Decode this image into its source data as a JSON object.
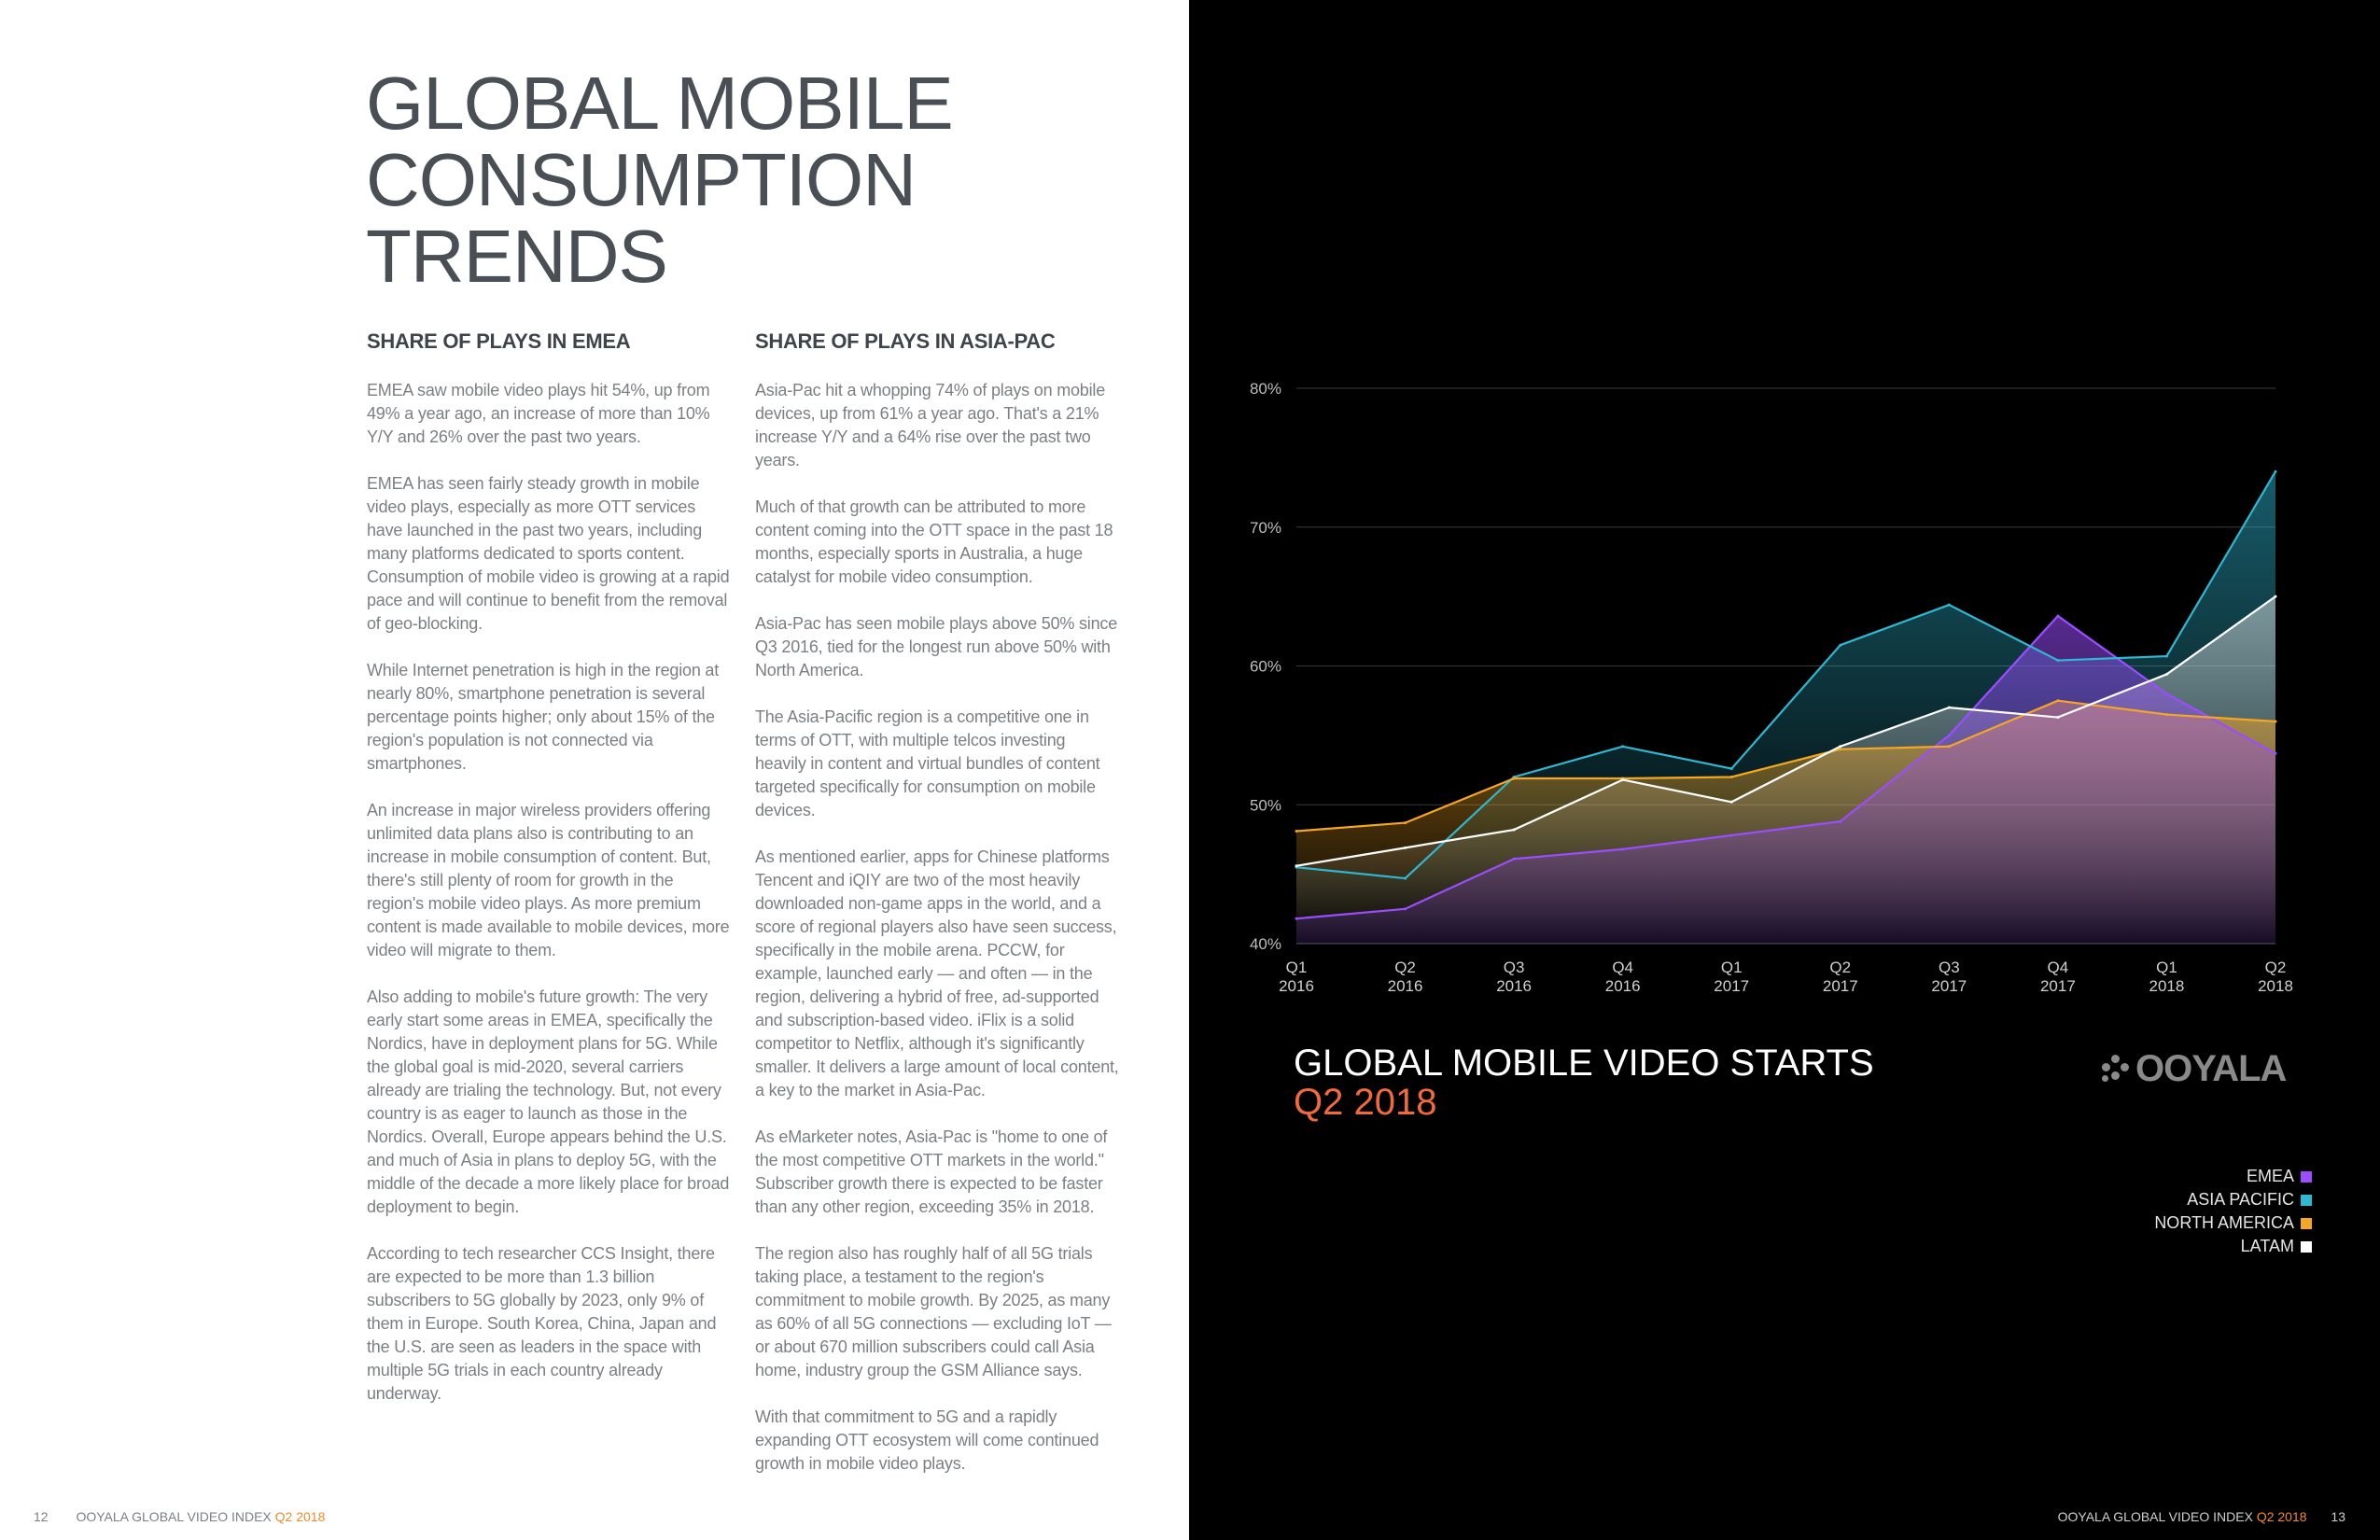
{
  "left_page": {
    "title_lines": [
      "GLOBAL MOBILE",
      "CONSUMPTION",
      "TRENDS"
    ],
    "col_left": {
      "heading": "SHARE OF PLAYS IN EMEA",
      "paragraphs": [
        "EMEA saw mobile video plays hit 54%, up from 49% a year ago, an increase of more than 10% Y/Y and 26% over the past two years.",
        "EMEA has seen fairly steady growth in mobile video plays, especially as more OTT services have launched in the past two years, including many platforms dedicated to sports content. Consumption of mobile video is growing at a rapid pace and will continue to benefit from the removal of geo-blocking.",
        "While Internet penetration is high in the region at nearly 80%, smartphone penetration is several percentage points higher; only about 15% of the region's population is not connected via smartphones.",
        "An increase in major wireless providers offering unlimited data plans also is contributing to an increase in mobile consumption of content. But, there's still plenty of room for growth in the region's mobile video plays. As more premium content is made available to mobile devices, more video will migrate to them.",
        "Also adding to mobile's future growth: The very early start some areas in EMEA, specifically the Nordics, have in deployment plans for 5G. While the global goal is mid-2020, several carriers already are trialing the technology. But, not every country is as eager to launch as those in the Nordics. Overall, Europe appears behind the U.S. and much of Asia in plans to deploy 5G, with the middle of the decade a more likely place for broad deployment to begin.",
        "According to tech researcher CCS Insight, there are expected to be more than 1.3 billion subscribers to 5G globally by 2023, only 9% of them in Europe. South Korea, China, Japan and the U.S. are seen as leaders in the space with multiple 5G trials in each country already underway."
      ]
    },
    "col_right": {
      "heading": "SHARE OF PLAYS IN ASIA-PAC",
      "paragraphs": [
        "Asia-Pac hit a whopping 74% of plays on mobile devices, up from 61% a year ago. That's a 21% increase Y/Y and a 64% rise over the past two years.",
        "Much of that growth can be attributed to more content coming into the OTT space in the past 18 months, especially sports in Australia, a huge catalyst for mobile video consumption.",
        "Asia-Pac has seen mobile plays above 50% since Q3 2016, tied for the longest run above 50% with North America.",
        "The Asia-Pacific region is a competitive one in terms of OTT, with multiple telcos investing heavily in content and virtual bundles of content targeted specifically for consumption on mobile devices.",
        "As mentioned earlier, apps for Chinese platforms Tencent and iQIY are two of the most heavily downloaded non-game apps in the world, and a score of regional players also have seen success, specifically in the mobile arena. PCCW, for example, launched early — and often — in the region, delivering a hybrid of free, ad-supported and subscription-based video. iFlix is a solid competitor to Netflix, although it's significantly smaller. It delivers a large amount of local content, a key to the market in Asia-Pac.",
        "As eMarketer notes, Asia-Pac is \"home to one of the most competitive OTT markets in the world.\" Subscriber growth there is expected to be faster than any other region, exceeding 35% in 2018.",
        "The region also has roughly half of all 5G trials taking place, a testament to the region's commitment to mobile growth. By 2025, as many as 60% of all 5G connections — excluding IoT — or about 670 million subscribers could call Asia home, industry group the GSM Alliance says.",
        "With that commitment to 5G and a rapidly expanding OTT ecosystem will come continued growth in mobile video plays."
      ]
    },
    "footer": {
      "page_number": "12",
      "label": "OOYALA GLOBAL VIDEO INDEX",
      "period": "Q2 2018"
    }
  },
  "right_page": {
    "chart_title": "GLOBAL MOBILE VIDEO STARTS",
    "chart_subtitle": "Q2 2018",
    "logo_text": "OOYALA",
    "footer": {
      "page_number": "13",
      "label": "OOYALA GLOBAL VIDEO INDEX",
      "period": "Q2 2018"
    }
  },
  "chart_data": {
    "type": "area",
    "title": "GLOBAL MOBILE VIDEO STARTS",
    "subtitle": "Q2 2018",
    "categories": [
      "Q1 2016",
      "Q2 2016",
      "Q3 2016",
      "Q4 2016",
      "Q1 2017",
      "Q2 2017",
      "Q3 2017",
      "Q4 2017",
      "Q1 2018",
      "Q2 2018"
    ],
    "category_quarters": [
      "Q1",
      "Q2",
      "Q3",
      "Q4",
      "Q1",
      "Q2",
      "Q3",
      "Q4",
      "Q1",
      "Q2"
    ],
    "category_years": [
      "2016",
      "2016",
      "2016",
      "2016",
      "2017",
      "2017",
      "2017",
      "2017",
      "2018",
      "2018"
    ],
    "y_ticks": [
      40,
      50,
      60,
      70,
      80
    ],
    "y_tick_labels": [
      "40%",
      "50%",
      "60%",
      "70%",
      "80%"
    ],
    "ylim": [
      40,
      80
    ],
    "grid": true,
    "legend_position": "bottom-right",
    "series": [
      {
        "name": "EMEA",
        "color": "#9b4dff",
        "values": [
          41.8,
          42.5,
          46.1,
          46.8,
          47.8,
          48.8,
          55.0,
          63.6,
          58.0,
          53.7
        ]
      },
      {
        "name": "ASIA PACIFIC",
        "color": "#2fb8d2",
        "values": [
          45.5,
          44.7,
          52.0,
          54.2,
          52.6,
          61.5,
          64.4,
          60.4,
          60.7,
          74.0
        ]
      },
      {
        "name": "NORTH AMERICA",
        "color": "#f5a623",
        "values": [
          48.1,
          48.7,
          51.9,
          51.9,
          52.0,
          54.0,
          54.2,
          57.5,
          56.5,
          56.0
        ]
      },
      {
        "name": "LATAM",
        "color": "#ffffff",
        "values": [
          45.6,
          46.9,
          48.2,
          51.8,
          50.2,
          54.2,
          57.0,
          56.3,
          59.4,
          65.0
        ]
      }
    ]
  }
}
